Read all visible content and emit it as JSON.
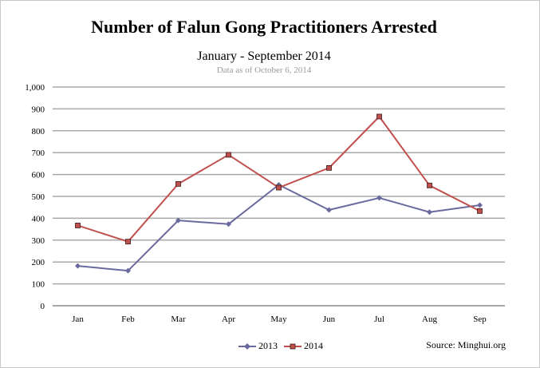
{
  "chart_data": {
    "type": "line",
    "title": "Number of Falun Gong Practitioners Arrested",
    "subtitle": "January - September 2014",
    "note": "Data as of October 6, 2014",
    "source": "Source: Minghui.org",
    "categories": [
      "Jan",
      "Feb",
      "Mar",
      "Apr",
      "May",
      "Jun",
      "Jul",
      "Aug",
      "Sep"
    ],
    "y_ticks": [
      "0",
      "100",
      "200",
      "300",
      "400",
      "500",
      "600",
      "700",
      "800",
      "900",
      "1,000"
    ],
    "ylim": [
      0,
      1000
    ],
    "grid": true,
    "legend_position": "bottom",
    "series": [
      {
        "name": "2013",
        "color": "#6a6a9e",
        "marker": "diamond",
        "values": [
          182,
          160,
          390,
          373,
          553,
          438,
          493,
          428,
          460
        ]
      },
      {
        "name": "2014",
        "color": "#c0504d",
        "marker": "square",
        "values": [
          367,
          293,
          557,
          690,
          540,
          630,
          865,
          550,
          433
        ]
      }
    ]
  }
}
